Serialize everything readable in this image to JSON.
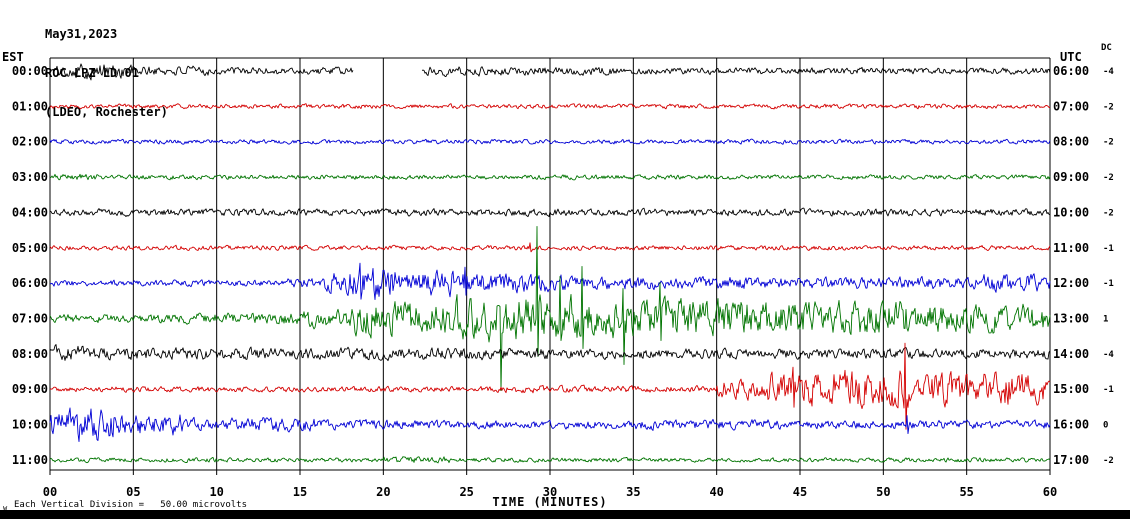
{
  "header": {
    "line1": "May31,2023",
    "line2": "ROC LPZ LD 01",
    "line3": "(LDEO, Rochester)"
  },
  "axes": {
    "left_label": "EST",
    "right_label": "UTC",
    "dc_label": "DC"
  },
  "footer": {
    "scale_prefix": "w",
    "scale_text": "Each Vertical Division =   50.00 microvolts"
  },
  "chart_data": {
    "type": "line",
    "subtype": "seismogram-helicorder",
    "title": "ROC LPZ LD 01 (LDEO, Rochester) May31,2023",
    "xlabel": "TIME (MINUTES)",
    "x_range_minutes": [
      0,
      60
    ],
    "x_tick_interval_minutes": 5,
    "x_ticks": [
      "00",
      "05",
      "10",
      "15",
      "20",
      "25",
      "30",
      "35",
      "40",
      "45",
      "50",
      "55",
      "60"
    ],
    "vertical_division_microvolts": 50.0,
    "grid": "vertical-only",
    "colors": {
      "black": "#000000",
      "red": "#d40000",
      "blue": "#0000d4",
      "green": "#007400"
    },
    "rows": [
      {
        "est": "00:00",
        "utc": "06:00",
        "dc": "-4",
        "color": "black",
        "envelope": [
          [
            0,
            1.5,
            4
          ],
          [
            1.5,
            5,
            6
          ],
          [
            5,
            10,
            3.5
          ],
          [
            10,
            18.2,
            2.8
          ],
          [
            22.3,
            26,
            3.5
          ],
          [
            26,
            34,
            3
          ],
          [
            34,
            60.1,
            2.4
          ]
        ],
        "gaps": [
          [
            18.2,
            22.3
          ]
        ],
        "spikes": []
      },
      {
        "est": "01:00",
        "utc": "07:00",
        "dc": "-2",
        "color": "red",
        "envelope": [
          [
            0,
            60.1,
            1.6
          ]
        ],
        "gaps": [],
        "spikes": []
      },
      {
        "est": "02:00",
        "utc": "08:00",
        "dc": "-2",
        "color": "blue",
        "envelope": [
          [
            0,
            60.1,
            1.6
          ]
        ],
        "gaps": [],
        "spikes": []
      },
      {
        "est": "03:00",
        "utc": "09:00",
        "dc": "-2",
        "color": "green",
        "envelope": [
          [
            0,
            3,
            2.4
          ],
          [
            3,
            60.1,
            1.7
          ]
        ],
        "gaps": [],
        "spikes": []
      },
      {
        "est": "04:00",
        "utc": "10:00",
        "dc": "-2",
        "color": "black",
        "envelope": [
          [
            0,
            60.1,
            2.6
          ]
        ],
        "gaps": [],
        "spikes": []
      },
      {
        "est": "05:00",
        "utc": "11:00",
        "dc": "-1",
        "color": "red",
        "envelope": [
          [
            0,
            60.1,
            1.7
          ]
        ],
        "gaps": [],
        "spikes": [
          [
            28.8,
            5,
            4
          ]
        ]
      },
      {
        "est": "06:00",
        "utc": "12:00",
        "dc": "-1",
        "color": "blue",
        "envelope": [
          [
            0,
            14,
            2.2
          ],
          [
            14,
            16.5,
            3.5
          ],
          [
            16.5,
            18,
            8
          ],
          [
            18,
            21,
            13
          ],
          [
            21,
            26,
            10
          ],
          [
            26,
            31,
            6.5
          ],
          [
            31,
            42,
            4.5
          ],
          [
            42,
            50,
            4
          ],
          [
            50,
            56,
            4.5
          ],
          [
            56,
            60.1,
            6.5
          ]
        ],
        "gaps": [],
        "spikes": [
          [
            18.6,
            20,
            16
          ],
          [
            24.9,
            16,
            12
          ]
        ]
      },
      {
        "est": "07:00",
        "utc": "13:00",
        "dc": "1",
        "color": "green",
        "envelope": [
          [
            0,
            8,
            3
          ],
          [
            8,
            14,
            4
          ],
          [
            14,
            18,
            6.5
          ],
          [
            18,
            24,
            12
          ],
          [
            24,
            33,
            16
          ],
          [
            33,
            42,
            14
          ],
          [
            42,
            52,
            12
          ],
          [
            52,
            60.1,
            10
          ]
        ],
        "gaps": [],
        "spikes": [
          [
            27.0,
            12,
            72
          ],
          [
            29.2,
            92,
            38
          ],
          [
            30.6,
            42,
            22
          ],
          [
            31.9,
            52,
            30
          ],
          [
            34.4,
            30,
            46
          ],
          [
            36.6,
            36,
            22
          ]
        ]
      },
      {
        "est": "08:00",
        "utc": "14:00",
        "dc": "-4",
        "color": "black",
        "envelope": [
          [
            0,
            2,
            6
          ],
          [
            2,
            30,
            4.2
          ],
          [
            30,
            60.1,
            3.6
          ]
        ],
        "gaps": [],
        "spikes": []
      },
      {
        "est": "09:00",
        "utc": "15:00",
        "dc": "-1",
        "color": "red",
        "envelope": [
          [
            0,
            27,
            2
          ],
          [
            27,
            30,
            2.8
          ],
          [
            30,
            40,
            2.4
          ],
          [
            40,
            43,
            7
          ],
          [
            43,
            47,
            12
          ],
          [
            47,
            52,
            14
          ],
          [
            52,
            57,
            12
          ],
          [
            57,
            60.1,
            12
          ]
        ],
        "gaps": [],
        "spikes": [
          [
            44.6,
            22,
            18
          ],
          [
            51.3,
            46,
            40
          ]
        ]
      },
      {
        "est": "10:00",
        "utc": "16:00",
        "dc": "0",
        "color": "blue",
        "envelope": [
          [
            0,
            1,
            9
          ],
          [
            1,
            4.5,
            12
          ],
          [
            4.5,
            8,
            8
          ],
          [
            8,
            12,
            4.5
          ],
          [
            12,
            16,
            5
          ],
          [
            16,
            22,
            3.5
          ],
          [
            22,
            35,
            3
          ],
          [
            35,
            44,
            3.8
          ],
          [
            44,
            60.1,
            3
          ]
        ],
        "gaps": [],
        "spikes": [
          [
            51.4,
            9,
            9
          ]
        ]
      },
      {
        "est": "11:00",
        "utc": "17:00",
        "dc": "-2",
        "color": "green",
        "envelope": [
          [
            0,
            20,
            1.6
          ],
          [
            20,
            24,
            2.6
          ],
          [
            24,
            60.1,
            1.6
          ]
        ],
        "gaps": [],
        "spikes": []
      }
    ]
  }
}
